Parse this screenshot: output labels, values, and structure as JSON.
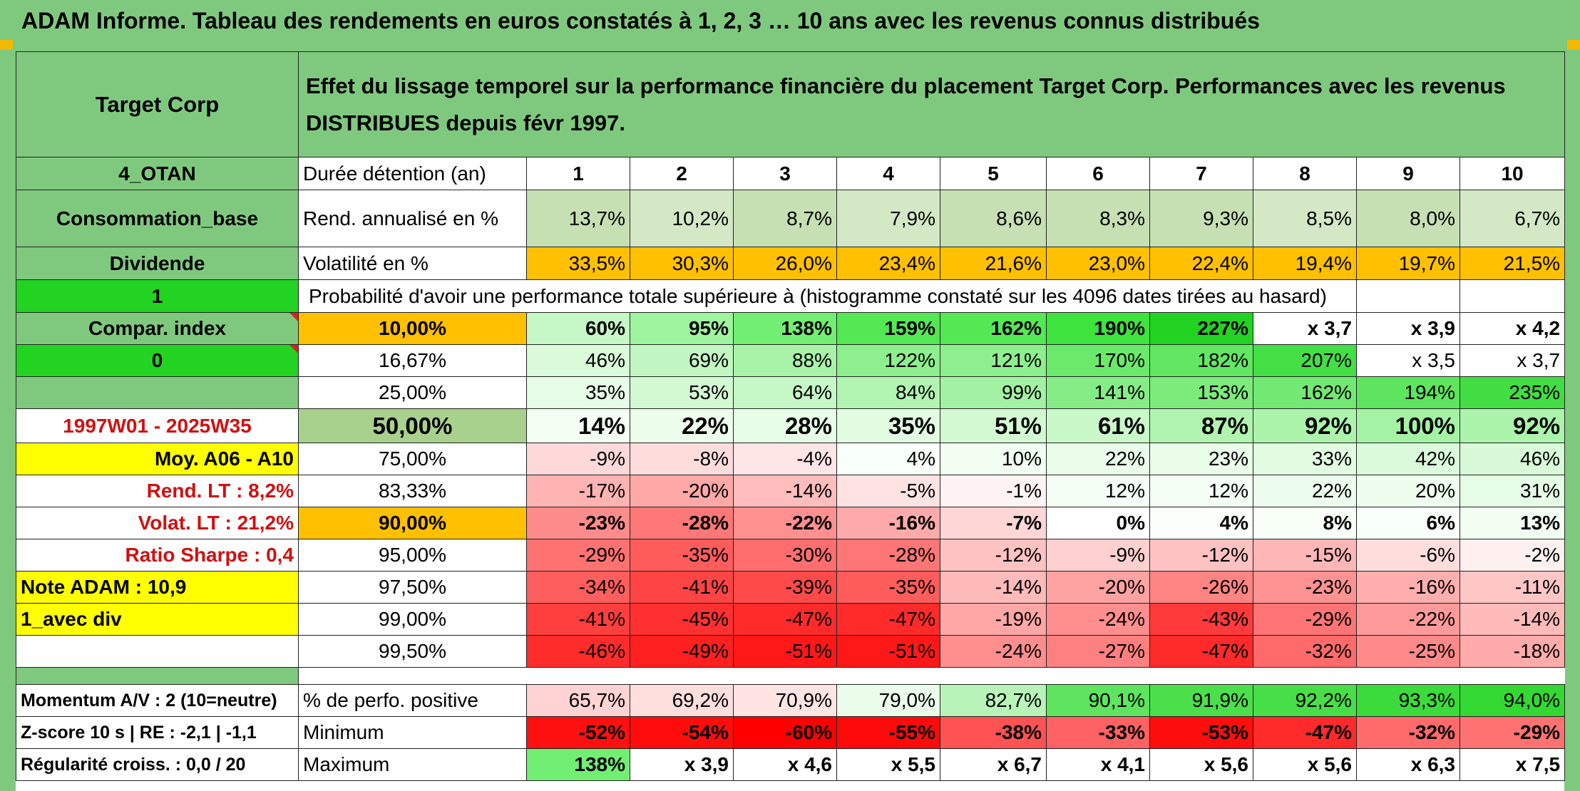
{
  "title": "ADAM Informe. Tableau des rendements en euros constatés à 1, 2, 3 … 10 ans avec les revenus connus distribués",
  "header": {
    "company": "Target Corp",
    "description": "Effet du lissage temporel sur la performance financière du placement Target Corp. Performances avec les revenus DISTRIBUES depuis févr 1997."
  },
  "left_panel": {
    "otan": "4_OTAN",
    "sector": "Consommation_base",
    "dividend": "Dividende",
    "flag1": "1",
    "compar": "Compar. index",
    "flag0": "0",
    "period": "1997W01 - 2025W35",
    "moy": "Moy. A06 - A10",
    "rend_lt": "Rend. LT :   8,2%",
    "volat_lt": "Volat. LT :   21,2%",
    "sharpe": "Ratio Sharpe :    0,4",
    "note": "Note ADAM : 10,9",
    "avec_div": "1_avec div"
  },
  "labels": {
    "duree": "Durée détention (an)",
    "rend": "Rend. annualisé en %",
    "volat": "Volatilité en %",
    "proba": "Probabilité d'avoir une performance totale supérieure à (histogramme constaté sur les 4096 dates tirées au hasard)"
  },
  "years": [
    "1",
    "2",
    "3",
    "4",
    "5",
    "6",
    "7",
    "8",
    "9",
    "10"
  ],
  "rend_row": {
    "values": [
      "13,7%",
      "10,2%",
      "8,7%",
      "7,9%",
      "8,6%",
      "8,3%",
      "9,3%",
      "8,5%",
      "8,0%",
      "6,7%"
    ],
    "colors": [
      "#c6e0b4",
      "#d4e8c6",
      "#c6e0b4",
      "#d4e8c6",
      "#c6e0b4",
      "#c6e0b4",
      "#c6e0b4",
      "#d4e8c6",
      "#c6e0b4",
      "#d4e8c6"
    ]
  },
  "volat_row": {
    "values": [
      "33,5%",
      "30,3%",
      "26,0%",
      "23,4%",
      "21,6%",
      "23,0%",
      "22,4%",
      "19,4%",
      "19,7%",
      "21,5%"
    ],
    "color": "#ffc000"
  },
  "prob_rows": [
    {
      "pct": "10,00%",
      "bold": true,
      "pct_bg": "#ffc000",
      "values": [
        "60%",
        "95%",
        "138%",
        "159%",
        "162%",
        "190%",
        "227%",
        "x 3,7",
        "x 3,9",
        "x 4,2"
      ],
      "colors": [
        "#c6f7c6",
        "#9ef59e",
        "#72ef72",
        "#55e855",
        "#55e855",
        "#3ee33e",
        "#22d322",
        "#ffffff",
        "#ffffff",
        "#ffffff"
      ]
    },
    {
      "pct": "16,67%",
      "bold": false,
      "pct_bg": "#ffffff",
      "values": [
        "46%",
        "69%",
        "88%",
        "122%",
        "121%",
        "170%",
        "182%",
        "207%",
        "x 3,5",
        "x 3,7"
      ],
      "colors": [
        "#dafada",
        "#c2f6c2",
        "#a8f3a8",
        "#8eef8e",
        "#8eef8e",
        "#6be96b",
        "#62e762",
        "#44df44",
        "#ffffff",
        "#ffffff"
      ]
    },
    {
      "pct": "25,00%",
      "bold": false,
      "pct_bg": "#ffffff",
      "values": [
        "35%",
        "53%",
        "64%",
        "84%",
        "99%",
        "141%",
        "153%",
        "162%",
        "194%",
        "235%"
      ],
      "colors": [
        "#e6fce6",
        "#d3f9d3",
        "#c6f7c6",
        "#b2f4b2",
        "#a3f2a3",
        "#86ed86",
        "#7ceb7c",
        "#72e972",
        "#5ee45e",
        "#42dd42"
      ]
    },
    {
      "pct": "50,00%",
      "bold": true,
      "pct_bg": "#a9d18e",
      "values": [
        "14%",
        "22%",
        "28%",
        "35%",
        "51%",
        "61%",
        "87%",
        "92%",
        "100%",
        "92%"
      ],
      "colors": [
        "#f4fff4",
        "#edfeed",
        "#e8fde8",
        "#e2fce2",
        "#d3f9d3",
        "#c9f8c9",
        "#b0f4b0",
        "#acf3ac",
        "#a4f2a4",
        "#acf3ac"
      ]
    },
    {
      "pct": "75,00%",
      "bold": false,
      "pct_bg": "#ffffff",
      "values": [
        "-9%",
        "-8%",
        "-4%",
        "4%",
        "10%",
        "22%",
        "23%",
        "33%",
        "42%",
        "46%"
      ],
      "colors": [
        "#ffd9d9",
        "#ffdcdc",
        "#ffe6e6",
        "#f9fff9",
        "#f2fef2",
        "#eafdea",
        "#e9fde9",
        "#e2fce2",
        "#dbfadb",
        "#d8fad8"
      ]
    },
    {
      "pct": "83,33%",
      "bold": false,
      "pct_bg": "#ffffff",
      "values": [
        "-17%",
        "-20%",
        "-14%",
        "-5%",
        "-1%",
        "12%",
        "12%",
        "22%",
        "20%",
        "31%"
      ],
      "colors": [
        "#ffb3b3",
        "#ffa8a8",
        "#ffbdbd",
        "#ffe3e3",
        "#fff3f3",
        "#f4fef4",
        "#f4fef4",
        "#edfded",
        "#eefdee",
        "#e5fce5"
      ]
    },
    {
      "pct": "90,00%",
      "bold": true,
      "pct_bg": "#ffc000",
      "values": [
        "-23%",
        "-28%",
        "-22%",
        "-16%",
        "-7%",
        "0%",
        "4%",
        "8%",
        "6%",
        "13%"
      ],
      "colors": [
        "#ff8c8c",
        "#ff7878",
        "#ff9090",
        "#ffaaaa",
        "#ffd6d6",
        "#ffffff",
        "#fbfffb",
        "#f7fff7",
        "#f9fff9",
        "#f3fef3"
      ]
    },
    {
      "pct": "95,00%",
      "bold": false,
      "pct_bg": "#ffffff",
      "values": [
        "-29%",
        "-35%",
        "-30%",
        "-28%",
        "-12%",
        "-9%",
        "-12%",
        "-15%",
        "-6%",
        "-2%"
      ],
      "colors": [
        "#ff7272",
        "#ff5c5c",
        "#ff6e6e",
        "#ff7676",
        "#ffc2c2",
        "#ffd0d0",
        "#ffc2c2",
        "#ffb6b6",
        "#ffdddd",
        "#fff0f0"
      ]
    },
    {
      "pct": "97,50%",
      "bold": false,
      "pct_bg": "#ffffff",
      "values": [
        "-34%",
        "-41%",
        "-39%",
        "-35%",
        "-14%",
        "-20%",
        "-26%",
        "-23%",
        "-16%",
        "-11%"
      ],
      "colors": [
        "#ff5e5e",
        "#ff4444",
        "#ff4a4a",
        "#ff5c5c",
        "#ffbaba",
        "#ffa2a2",
        "#ff8484",
        "#ff9292",
        "#ffaeae",
        "#ffc6c6"
      ]
    },
    {
      "pct": "99,00%",
      "bold": false,
      "pct_bg": "#ffffff",
      "values": [
        "-41%",
        "-45%",
        "-47%",
        "-47%",
        "-19%",
        "-24%",
        "-43%",
        "-29%",
        "-22%",
        "-14%"
      ],
      "colors": [
        "#ff3e3e",
        "#ff3030",
        "#ff2a2a",
        "#ff2a2a",
        "#ffa6a6",
        "#ff8e8e",
        "#ff3a3a",
        "#ff7474",
        "#ff9a9a",
        "#ffbaba"
      ]
    },
    {
      "pct": "99,50%",
      "bold": false,
      "pct_bg": "#ffffff",
      "values": [
        "-46%",
        "-49%",
        "-51%",
        "-51%",
        "-24%",
        "-27%",
        "-47%",
        "-32%",
        "-25%",
        "-18%"
      ],
      "colors": [
        "#ff2c2c",
        "#ff2020",
        "#ff1818",
        "#ff1818",
        "#ff8e8e",
        "#ff8080",
        "#ff2a2a",
        "#ff6a6a",
        "#ff8a8a",
        "#ffabab"
      ]
    }
  ],
  "stats": {
    "momentum": "Momentum A/V : 2 (10=neutre)",
    "zscore": "Z-score 10 s | RE : -2,1 | -1,1",
    "regularite": "Régularité croiss. : 0,0 / 20",
    "pos_label": "% de perfo. positive",
    "min_label": "Minimum",
    "max_label": "Maximum",
    "pos_values": [
      "65,7%",
      "69,2%",
      "70,9%",
      "79,0%",
      "82,7%",
      "90,1%",
      "91,9%",
      "92,2%",
      "93,3%",
      "94,0%"
    ],
    "pos_colors": [
      "#ffd3d3",
      "#ffdede",
      "#ffe4e4",
      "#eafdea",
      "#b8f4b8",
      "#5ee45e",
      "#4cdf4c",
      "#48de48",
      "#3cdb3c",
      "#33d833"
    ],
    "min_values": [
      "-52%",
      "-54%",
      "-60%",
      "-55%",
      "-38%",
      "-33%",
      "-53%",
      "-47%",
      "-32%",
      "-29%"
    ],
    "min_colors": [
      "#ff1010",
      "#ff0c0c",
      "#ff0000",
      "#ff0a0a",
      "#ff5252",
      "#ff6262",
      "#ff0e0e",
      "#ff2a2a",
      "#ff6a6a",
      "#ff7272"
    ],
    "max_values": [
      "138%",
      "x 3,9",
      "x 4,6",
      "x 5,5",
      "x 6,7",
      "x 4,1",
      "x 5,6",
      "x 5,6",
      "x 6,3",
      "x 7,5"
    ],
    "max_colors": [
      "#72ef72",
      "#ffffff",
      "#ffffff",
      "#ffffff",
      "#ffffff",
      "#ffffff",
      "#ffffff",
      "#ffffff",
      "#ffffff",
      "#ffffff"
    ]
  }
}
